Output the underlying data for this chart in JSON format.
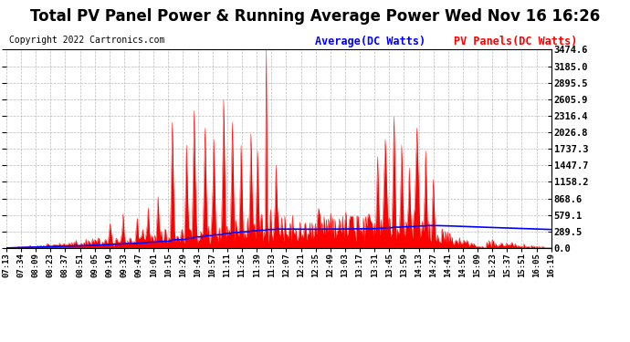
{
  "title": "Total PV Panel Power & Running Average Power Wed Nov 16 16:26",
  "copyright": "Copyright 2022 Cartronics.com",
  "legend_avg": "Average(DC Watts)",
  "legend_pv": "PV Panels(DC Watts)",
  "avg_color": "blue",
  "pv_color": "red",
  "bg_color": "white",
  "grid_color": "#aaaaaa",
  "yticks": [
    0.0,
    289.5,
    579.1,
    868.6,
    1158.2,
    1447.7,
    1737.3,
    2026.8,
    2316.4,
    2605.9,
    2895.5,
    3185.0,
    3474.6
  ],
  "ymax": 3474.6,
  "ymin": 0.0,
  "xtick_labels": [
    "07:13",
    "07:34",
    "08:09",
    "08:23",
    "08:37",
    "08:51",
    "09:05",
    "09:19",
    "09:33",
    "09:47",
    "10:01",
    "10:15",
    "10:29",
    "10:43",
    "10:57",
    "11:11",
    "11:25",
    "11:39",
    "11:53",
    "12:07",
    "12:21",
    "12:35",
    "12:49",
    "13:03",
    "13:17",
    "13:31",
    "13:45",
    "13:59",
    "14:13",
    "14:27",
    "14:41",
    "14:55",
    "15:09",
    "15:23",
    "15:37",
    "15:51",
    "16:05",
    "16:19"
  ],
  "title_fontsize": 12,
  "copyright_fontsize": 7,
  "legend_fontsize": 8.5,
  "tick_fontsize": 6.5,
  "ytick_fontsize": 7.5
}
